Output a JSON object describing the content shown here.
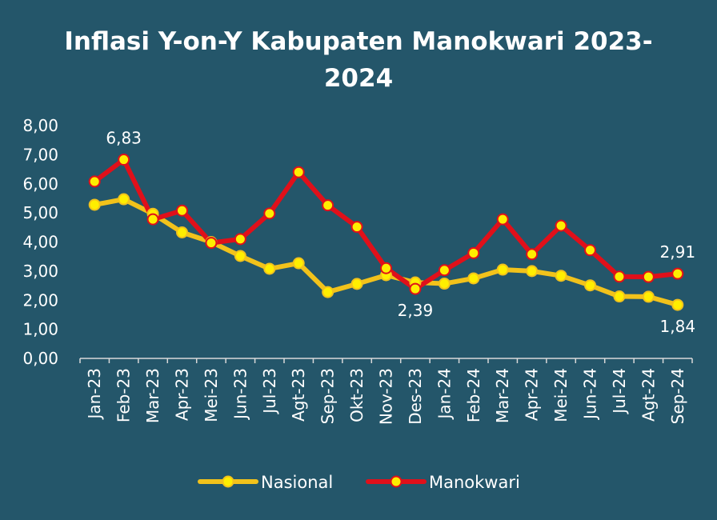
{
  "chart_data": {
    "type": "line",
    "title": [
      "Inflasi Y-on-Y Kabupaten Manokwari 2023-",
      "2024"
    ],
    "xlabel": "",
    "ylabel": "",
    "ylim": [
      0,
      8
    ],
    "yticks": [
      "0,00",
      "1,00",
      "2,00",
      "3,00",
      "4,00",
      "5,00",
      "6,00",
      "7,00",
      "8,00"
    ],
    "grid": false,
    "legend_position": "bottom",
    "categories": [
      "Jan-23",
      "Feb-23",
      "Mar-23",
      "Apr-23",
      "Mei-23",
      "Jun-23",
      "Jul-23",
      "Agt-23",
      "Sep-23",
      "Okt-23",
      "Nov-23",
      "Des-23",
      "Jan-24",
      "Feb-24",
      "Mar-24",
      "Apr-24",
      "Mei-24",
      "Jun-24",
      "Jul-24",
      "Agt-24",
      "Sep-24"
    ],
    "series": [
      {
        "name": "Nasional",
        "color": "#f2c21b",
        "values": [
          5.28,
          5.47,
          4.97,
          4.33,
          4.0,
          3.52,
          3.08,
          3.27,
          2.28,
          2.56,
          2.86,
          2.61,
          2.57,
          2.75,
          3.05,
          3.0,
          2.84,
          2.51,
          2.13,
          2.12,
          1.84
        ]
      },
      {
        "name": "Manokwari",
        "color": "#e0101a",
        "values": [
          6.08,
          6.83,
          4.78,
          5.08,
          3.97,
          4.1,
          4.98,
          6.4,
          5.26,
          4.52,
          3.1,
          2.39,
          3.03,
          3.62,
          4.78,
          3.58,
          4.56,
          3.72,
          2.81,
          2.8,
          2.91
        ]
      }
    ],
    "annotations": [
      {
        "series": "Manokwari",
        "index": 1,
        "text": "6,83",
        "placement": "above"
      },
      {
        "series": "Manokwari",
        "index": 11,
        "text": "2,39",
        "placement": "below"
      },
      {
        "series": "Manokwari",
        "index": 20,
        "text": "2,91",
        "placement": "above"
      },
      {
        "series": "Nasional",
        "index": 20,
        "text": "1,84",
        "placement": "below"
      }
    ]
  }
}
